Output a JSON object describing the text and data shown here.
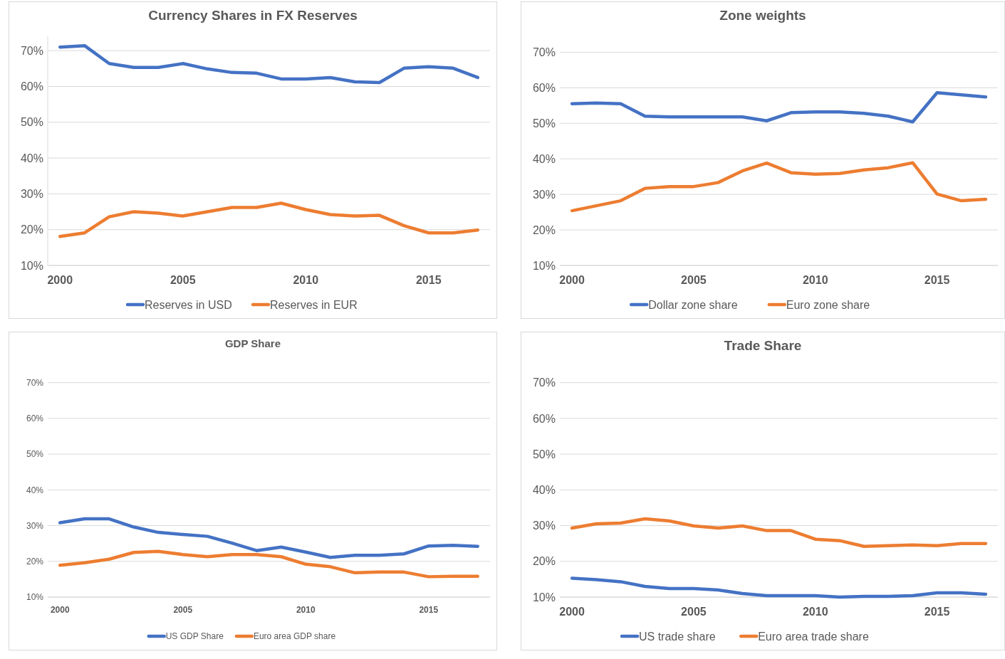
{
  "chart_data": [
    {
      "type": "line",
      "title": "Currency Shares in FX Reserves",
      "x": [
        2000,
        2001,
        2002,
        2003,
        2004,
        2005,
        2006,
        2007,
        2008,
        2009,
        2010,
        2011,
        2012,
        2013,
        2014,
        2015,
        2016,
        2017
      ],
      "xlim": [
        1999.5,
        2017.5
      ],
      "xticks": [
        2000,
        2005,
        2010,
        2015
      ],
      "ylim": [
        10,
        74
      ],
      "yticks": [
        {
          "value": 10,
          "label": "10%"
        },
        {
          "value": 20,
          "label": "20%"
        },
        {
          "value": 30,
          "label": "30%"
        },
        {
          "value": 40,
          "label": "40%"
        },
        {
          "value": 50,
          "label": "50%"
        },
        {
          "value": 60,
          "label": "60%"
        },
        {
          "value": 70,
          "label": "70%"
        }
      ],
      "grid": "y",
      "legend": "bottom",
      "series": [
        {
          "name": "Reserves in USD",
          "color": "#4472c4",
          "values": [
            71.0,
            71.4,
            66.4,
            65.3,
            65.3,
            66.4,
            64.9,
            63.9,
            63.7,
            62.1,
            62.1,
            62.5,
            61.3,
            61.1,
            65.1,
            65.5,
            65.1,
            62.5
          ]
        },
        {
          "name": "Reserves in EUR",
          "color": "#ed7d31",
          "values": [
            18.1,
            19.1,
            23.6,
            25.0,
            24.6,
            23.8,
            25.0,
            26.2,
            26.2,
            27.4,
            25.6,
            24.2,
            23.8,
            24.0,
            21.1,
            19.1,
            19.1,
            19.9
          ]
        }
      ]
    },
    {
      "type": "line",
      "title": "Zone  weights",
      "x": [
        2000,
        2001,
        2002,
        2003,
        2004,
        2005,
        2006,
        2007,
        2008,
        2009,
        2010,
        2011,
        2012,
        2013,
        2014,
        2015,
        2016,
        2017
      ],
      "xlim": [
        1999.5,
        2017.5
      ],
      "xticks": [
        2000,
        2005,
        2010,
        2015
      ],
      "ylim": [
        10,
        70
      ],
      "yticks": [
        {
          "value": 10,
          "label": "10%"
        },
        {
          "value": 20,
          "label": "20%"
        },
        {
          "value": 30,
          "label": "30%"
        },
        {
          "value": 40,
          "label": "40%"
        },
        {
          "value": 50,
          "label": "50%"
        },
        {
          "value": 60,
          "label": "60%"
        },
        {
          "value": 70,
          "label": "70%"
        }
      ],
      "grid": "y",
      "legend": "bottom",
      "series": [
        {
          "name": "Dollar zone share",
          "color": "#4472c4",
          "values": [
            55.5,
            55.7,
            55.5,
            52.0,
            51.8,
            51.8,
            51.8,
            51.8,
            50.7,
            53.0,
            53.2,
            53.2,
            52.8,
            52.0,
            50.4,
            58.6,
            58.0,
            57.4
          ]
        },
        {
          "name": "Euro zone share",
          "color": "#ed7d31",
          "values": [
            25.4,
            26.8,
            28.2,
            31.7,
            32.2,
            32.2,
            33.3,
            36.6,
            38.8,
            36.1,
            35.7,
            35.9,
            36.9,
            37.5,
            38.9,
            30.1,
            28.2,
            28.6
          ]
        }
      ]
    },
    {
      "type": "line",
      "title": "GDP Share",
      "x": [
        2000,
        2001,
        2002,
        2003,
        2004,
        2005,
        2006,
        2007,
        2008,
        2009,
        2010,
        2011,
        2012,
        2013,
        2014,
        2015,
        2016,
        2017
      ],
      "xlim": [
        1999.5,
        2017.5
      ],
      "xticks": [
        2000,
        2005,
        2010,
        2015
      ],
      "ylim": [
        10,
        70
      ],
      "yticks": [
        {
          "value": 10,
          "label": "10%"
        },
        {
          "value": 20,
          "label": "20%"
        },
        {
          "value": 30,
          "label": "30%"
        },
        {
          "value": 40,
          "label": "40%"
        },
        {
          "value": 50,
          "label": "50%"
        },
        {
          "value": 60,
          "label": "60%"
        },
        {
          "value": 70,
          "label": "70%"
        }
      ],
      "grid": "y",
      "legend": "bottom",
      "series": [
        {
          "name": "US GDP Share",
          "color": "#4472c4",
          "values": [
            30.8,
            31.9,
            31.9,
            29.6,
            28.1,
            27.5,
            27.0,
            25.1,
            23.0,
            24.0,
            22.6,
            21.1,
            21.7,
            21.7,
            22.1,
            24.3,
            24.5,
            24.2
          ]
        },
        {
          "name": "Euro area GDP share",
          "color": "#ed7d31",
          "values": [
            18.9,
            19.6,
            20.6,
            22.5,
            22.8,
            21.9,
            21.3,
            21.9,
            21.9,
            21.3,
            19.2,
            18.5,
            16.8,
            17.0,
            17.0,
            15.7,
            15.8,
            15.8
          ]
        }
      ]
    },
    {
      "type": "line",
      "title": "Trade Share",
      "x": [
        2000,
        2001,
        2002,
        2003,
        2004,
        2005,
        2006,
        2007,
        2008,
        2009,
        2010,
        2011,
        2012,
        2013,
        2014,
        2015,
        2016,
        2017
      ],
      "xlim": [
        1999.5,
        2017.5
      ],
      "xticks": [
        2000,
        2005,
        2010,
        2015
      ],
      "ylim": [
        10,
        70
      ],
      "yticks": [
        {
          "value": 10,
          "label": "10%"
        },
        {
          "value": 20,
          "label": "20%"
        },
        {
          "value": 30,
          "label": "30%"
        },
        {
          "value": 40,
          "label": "40%"
        },
        {
          "value": 50,
          "label": "50%"
        },
        {
          "value": 60,
          "label": "60%"
        },
        {
          "value": 70,
          "label": "70%"
        }
      ],
      "grid": "y",
      "legend": "bottom",
      "series": [
        {
          "name": "US trade share",
          "color": "#4472c4",
          "values": [
            15.3,
            14.9,
            14.3,
            13.0,
            12.4,
            12.4,
            12.0,
            11.0,
            10.4,
            10.4,
            10.4,
            10.0,
            10.2,
            10.2,
            10.4,
            11.2,
            11.2,
            10.8
          ]
        },
        {
          "name": "Euro area trade share",
          "color": "#ed7d31",
          "values": [
            29.3,
            30.5,
            30.7,
            31.9,
            31.3,
            29.9,
            29.3,
            29.9,
            28.6,
            28.6,
            26.2,
            25.8,
            24.2,
            24.4,
            24.6,
            24.4,
            25.0,
            25.0
          ]
        }
      ]
    }
  ]
}
